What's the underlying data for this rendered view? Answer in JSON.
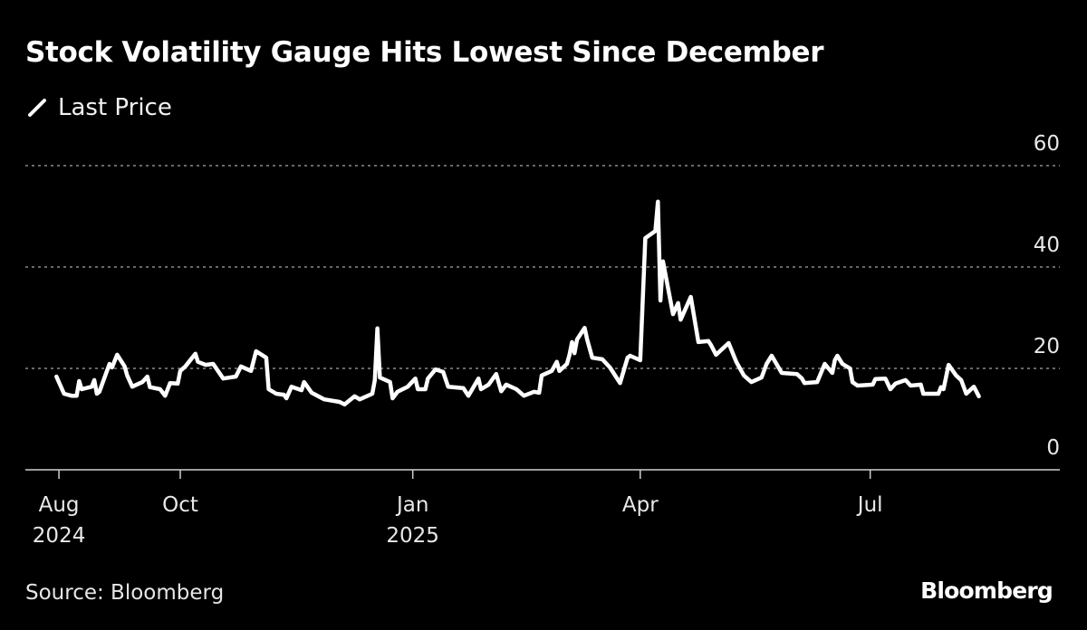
{
  "title": "Stock Volatility Gauge Hits Lowest Since December",
  "legend": {
    "label": "Last Price",
    "icon": "line-slash-icon"
  },
  "source": "Source: Bloomberg",
  "logo": "Bloomberg",
  "colors": {
    "background": "#000000",
    "line": "#ffffff",
    "grid": "#8a8a8a"
  },
  "chart_data": {
    "type": "line",
    "title": "Stock Volatility Gauge Hits Lowest Since December",
    "xlabel": "",
    "ylabel": "",
    "ylim": [
      0,
      60
    ],
    "yticks": [
      0,
      20,
      40,
      60
    ],
    "grid": "horizontal dotted",
    "legend_placement": "top-left",
    "xticks": [
      {
        "label": "Aug",
        "year": "2024"
      },
      {
        "label": "Oct",
        "year": ""
      },
      {
        "label": "Jan",
        "year": "2025"
      },
      {
        "label": "Apr",
        "year": ""
      },
      {
        "label": "Jul",
        "year": ""
      }
    ],
    "series": [
      {
        "name": "Last Price",
        "points": [
          [
            "2024-08-13",
            18.4
          ],
          [
            "2024-08-16",
            15.0
          ],
          [
            "2024-08-19",
            14.6
          ],
          [
            "2024-08-21",
            14.6
          ],
          [
            "2024-08-22",
            17.5
          ],
          [
            "2024-08-23",
            15.9
          ],
          [
            "2024-08-27",
            16.4
          ],
          [
            "2024-08-28",
            17.7
          ],
          [
            "2024-08-29",
            15.0
          ],
          [
            "2024-08-30",
            15.4
          ],
          [
            "2024-09-03",
            20.9
          ],
          [
            "2024-09-04",
            20.2
          ],
          [
            "2024-09-06",
            22.7
          ],
          [
            "2024-09-09",
            20.4
          ],
          [
            "2024-09-10",
            18.6
          ],
          [
            "2024-09-12",
            16.4
          ],
          [
            "2024-09-16",
            17.3
          ],
          [
            "2024-09-18",
            18.4
          ],
          [
            "2024-09-19",
            16.3
          ],
          [
            "2024-09-23",
            15.9
          ],
          [
            "2024-09-25",
            14.6
          ],
          [
            "2024-09-27",
            17.1
          ],
          [
            "2024-09-30",
            17.0
          ],
          [
            "2024-10-01",
            19.5
          ],
          [
            "2024-10-03",
            20.4
          ],
          [
            "2024-10-07",
            22.9
          ],
          [
            "2024-10-08",
            21.3
          ],
          [
            "2024-10-11",
            20.7
          ],
          [
            "2024-10-14",
            20.9
          ],
          [
            "2024-10-18",
            18.0
          ],
          [
            "2024-10-23",
            18.4
          ],
          [
            "2024-10-25",
            20.4
          ],
          [
            "2024-10-29",
            19.5
          ],
          [
            "2024-10-31",
            23.4
          ],
          [
            "2024-11-04",
            22.1
          ],
          [
            "2024-11-05",
            15.9
          ],
          [
            "2024-11-08",
            15.0
          ],
          [
            "2024-11-11",
            14.8
          ],
          [
            "2024-11-12",
            14.1
          ],
          [
            "2024-11-14",
            16.4
          ],
          [
            "2024-11-18",
            15.7
          ],
          [
            "2024-11-19",
            17.3
          ],
          [
            "2024-11-22",
            15.2
          ],
          [
            "2024-11-27",
            13.9
          ],
          [
            "2024-12-03",
            13.4
          ],
          [
            "2024-12-05",
            12.9
          ],
          [
            "2024-12-09",
            14.5
          ],
          [
            "2024-12-11",
            13.9
          ],
          [
            "2024-12-16",
            15.0
          ],
          [
            "2024-12-17",
            17.7
          ],
          [
            "2024-12-18",
            27.9
          ],
          [
            "2024-12-19",
            18.2
          ],
          [
            "2024-12-23",
            17.3
          ],
          [
            "2024-12-24",
            14.1
          ],
          [
            "2024-12-26",
            15.4
          ],
          [
            "2024-12-30",
            16.4
          ],
          [
            "2025-01-02",
            18.0
          ],
          [
            "2025-01-03",
            15.9
          ],
          [
            "2025-01-06",
            15.9
          ],
          [
            "2025-01-07",
            18.0
          ],
          [
            "2025-01-10",
            19.8
          ],
          [
            "2025-01-13",
            19.3
          ],
          [
            "2025-01-15",
            16.4
          ],
          [
            "2025-01-21",
            16.1
          ],
          [
            "2025-01-23",
            14.6
          ],
          [
            "2025-01-27",
            18.0
          ],
          [
            "2025-01-28",
            15.9
          ],
          [
            "2025-01-31",
            16.8
          ],
          [
            "2025-02-03",
            18.9
          ],
          [
            "2025-02-05",
            15.5
          ],
          [
            "2025-02-07",
            16.8
          ],
          [
            "2025-02-11",
            15.9
          ],
          [
            "2025-02-14",
            14.6
          ],
          [
            "2025-02-18",
            15.4
          ],
          [
            "2025-02-20",
            15.2
          ],
          [
            "2025-02-21",
            18.6
          ],
          [
            "2025-02-25",
            19.5
          ],
          [
            "2025-02-27",
            21.3
          ],
          [
            "2025-02-28",
            19.5
          ],
          [
            "2025-03-03",
            20.9
          ],
          [
            "2025-03-04",
            22.7
          ],
          [
            "2025-03-05",
            25.2
          ],
          [
            "2025-03-06",
            23.0
          ],
          [
            "2025-03-07",
            25.7
          ],
          [
            "2025-03-10",
            28.0
          ],
          [
            "2025-03-11",
            25.7
          ],
          [
            "2025-03-13",
            22.1
          ],
          [
            "2025-03-17",
            21.8
          ],
          [
            "2025-03-20",
            20.2
          ],
          [
            "2025-03-24",
            17.1
          ],
          [
            "2025-03-27",
            22.1
          ],
          [
            "2025-03-28",
            22.5
          ],
          [
            "2025-04-01",
            21.6
          ],
          [
            "2025-04-03",
            45.7
          ],
          [
            "2025-04-07",
            47.1
          ],
          [
            "2025-04-08",
            52.9
          ],
          [
            "2025-04-09",
            33.4
          ],
          [
            "2025-04-10",
            41.1
          ],
          [
            "2025-04-14",
            30.7
          ],
          [
            "2025-04-16",
            32.9
          ],
          [
            "2025-04-17",
            29.6
          ],
          [
            "2025-04-21",
            34.1
          ],
          [
            "2025-04-24",
            25.2
          ],
          [
            "2025-04-28",
            25.4
          ],
          [
            "2025-04-29",
            24.6
          ],
          [
            "2025-05-01",
            22.7
          ],
          [
            "2025-05-06",
            25.0
          ],
          [
            "2025-05-09",
            21.3
          ],
          [
            "2025-05-12",
            18.6
          ],
          [
            "2025-05-15",
            17.3
          ],
          [
            "2025-05-19",
            18.2
          ],
          [
            "2025-05-21",
            20.9
          ],
          [
            "2025-05-23",
            22.5
          ],
          [
            "2025-05-27",
            19.1
          ],
          [
            "2025-06-02",
            18.9
          ],
          [
            "2025-06-04",
            18.0
          ],
          [
            "2025-06-05",
            17.1
          ],
          [
            "2025-06-10",
            17.3
          ],
          [
            "2025-06-13",
            20.9
          ],
          [
            "2025-06-16",
            19.1
          ],
          [
            "2025-06-17",
            21.6
          ],
          [
            "2025-06-18",
            22.5
          ],
          [
            "2025-06-20",
            20.9
          ],
          [
            "2025-06-23",
            20.0
          ],
          [
            "2025-06-24",
            17.3
          ],
          [
            "2025-06-26",
            16.6
          ],
          [
            "2025-07-02",
            16.8
          ],
          [
            "2025-07-03",
            17.9
          ],
          [
            "2025-07-07",
            18.0
          ],
          [
            "2025-07-09",
            15.9
          ],
          [
            "2025-07-11",
            17.0
          ],
          [
            "2025-07-15",
            17.7
          ],
          [
            "2025-07-17",
            16.6
          ],
          [
            "2025-07-21",
            16.8
          ],
          [
            "2025-07-22",
            15.0
          ],
          [
            "2025-07-28",
            15.0
          ],
          [
            "2025-07-29",
            16.3
          ],
          [
            "2025-07-30",
            15.9
          ],
          [
            "2025-08-01",
            20.7
          ],
          [
            "2025-08-04",
            18.6
          ],
          [
            "2025-08-06",
            17.7
          ],
          [
            "2025-08-08",
            15.0
          ],
          [
            "2025-08-11",
            16.4
          ],
          [
            "2025-08-13",
            14.5
          ]
        ]
      }
    ]
  }
}
